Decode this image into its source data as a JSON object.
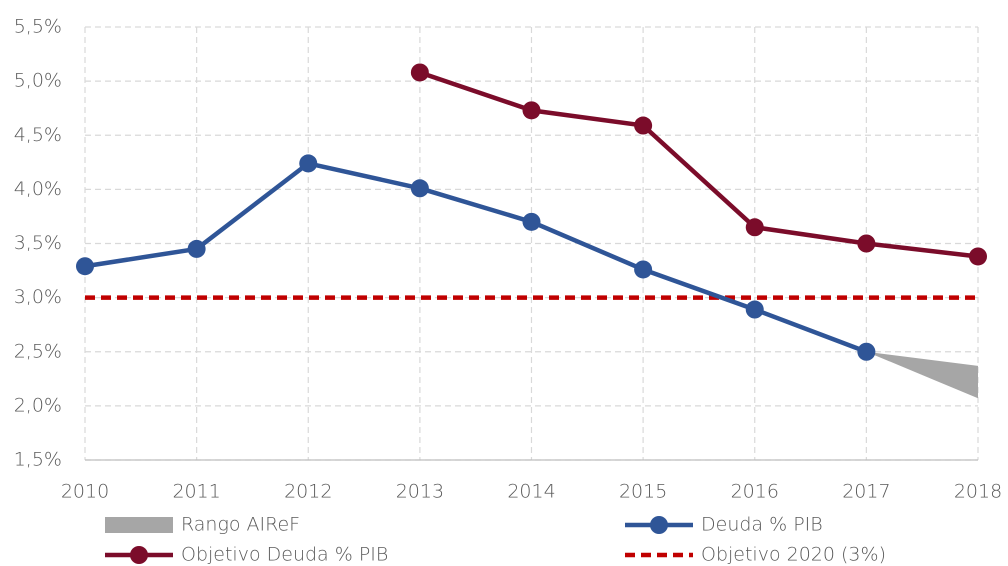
{
  "chart_data": {
    "type": "line",
    "x": [
      2010,
      2011,
      2012,
      2013,
      2014,
      2015,
      2016,
      2017,
      2018
    ],
    "xlim": [
      2010,
      2018
    ],
    "xticks": [
      2010,
      2011,
      2012,
      2013,
      2014,
      2015,
      2016,
      2017,
      2018
    ],
    "ylim": [
      1.5,
      5.5
    ],
    "yticks": [
      {
        "value": 1.5,
        "label": "1,5%"
      },
      {
        "value": 2.0,
        "label": "2,0%"
      },
      {
        "value": 2.5,
        "label": "2,5%"
      },
      {
        "value": 3.0,
        "label": "3,0%"
      },
      {
        "value": 3.5,
        "label": "3,5%"
      },
      {
        "value": 4.0,
        "label": "4,0%"
      },
      {
        "value": 4.5,
        "label": "4,5%"
      },
      {
        "value": 5.0,
        "label": "5,0%"
      },
      {
        "value": 5.5,
        "label": "5,5%"
      }
    ],
    "grid": true,
    "legend": "bottom",
    "series": [
      {
        "name": "Rango AIReF",
        "type": "band",
        "color": "#a6a6a6",
        "low": [
          null,
          null,
          null,
          null,
          null,
          null,
          null,
          2.5,
          2.07
        ],
        "high": [
          null,
          null,
          null,
          null,
          null,
          null,
          null,
          2.5,
          2.37
        ]
      },
      {
        "name": "Deuda % PIB",
        "type": "line",
        "color": "#2f5597",
        "marker": true,
        "values": [
          3.29,
          3.45,
          4.24,
          4.01,
          3.7,
          3.26,
          2.89,
          2.5,
          null
        ]
      },
      {
        "name": "Objetivo Deuda % PIB",
        "type": "line",
        "color": "#7b0c2a",
        "marker": true,
        "values": [
          null,
          null,
          null,
          5.08,
          4.73,
          4.59,
          3.65,
          3.5,
          3.38
        ]
      },
      {
        "name": "Objetivo 2020 (3%)",
        "type": "line",
        "color": "#c00000",
        "dash": true,
        "values": [
          3.0,
          3.0,
          3.0,
          3.0,
          3.0,
          3.0,
          3.0,
          3.0,
          3.0
        ]
      }
    ]
  }
}
